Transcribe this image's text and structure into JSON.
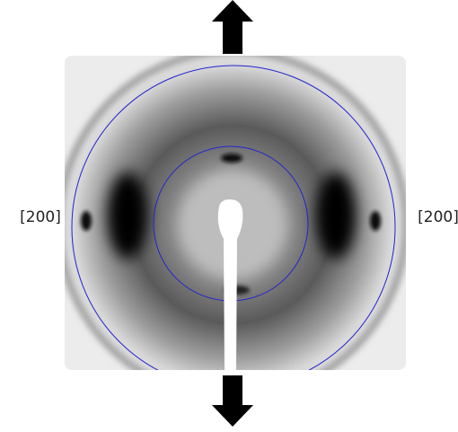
{
  "labels": {
    "left": "[200]",
    "right": "[200]"
  }
}
